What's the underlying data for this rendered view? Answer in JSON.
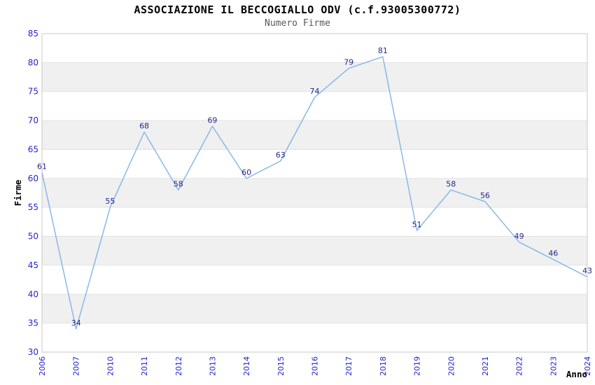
{
  "page": {
    "background": "#ffffff"
  },
  "chart_data": {
    "type": "line",
    "title": "ASSOCIAZIONE IL BECCOGIALLO ODV (c.f.93005300772)",
    "subtitle": "Numero Firme",
    "xlabel": "Anno",
    "ylabel": "Firme",
    "categories": [
      "2006",
      "2007",
      "2010",
      "2011",
      "2012",
      "2013",
      "2014",
      "2015",
      "2016",
      "2017",
      "2018",
      "2019",
      "2020",
      "2021",
      "2022",
      "2023",
      "2024"
    ],
    "series": [
      {
        "name": "Numero Firme",
        "values": [
          61,
          34,
          55,
          68,
          58,
          69,
          60,
          63,
          74,
          79,
          81,
          51,
          58,
          56,
          49,
          46,
          43
        ]
      }
    ],
    "ylim": [
      30,
      85
    ],
    "yticks": [
      85,
      80,
      75,
      70,
      65,
      60,
      55,
      50,
      45,
      40,
      35,
      30
    ],
    "grid": "horizontal",
    "banding": "alternating gray bands every 5 units",
    "legend": "none",
    "point_labels": true,
    "colors": {
      "line": "#82b4e8",
      "point_label": "#26268c",
      "tick_label": "#2424cc",
      "band": "#f0f0f0",
      "grid": "#e2e2e2",
      "border": "#c9c9c9",
      "title": "#000000",
      "subtitle": "#595959",
      "axis_title": "#000000"
    }
  }
}
